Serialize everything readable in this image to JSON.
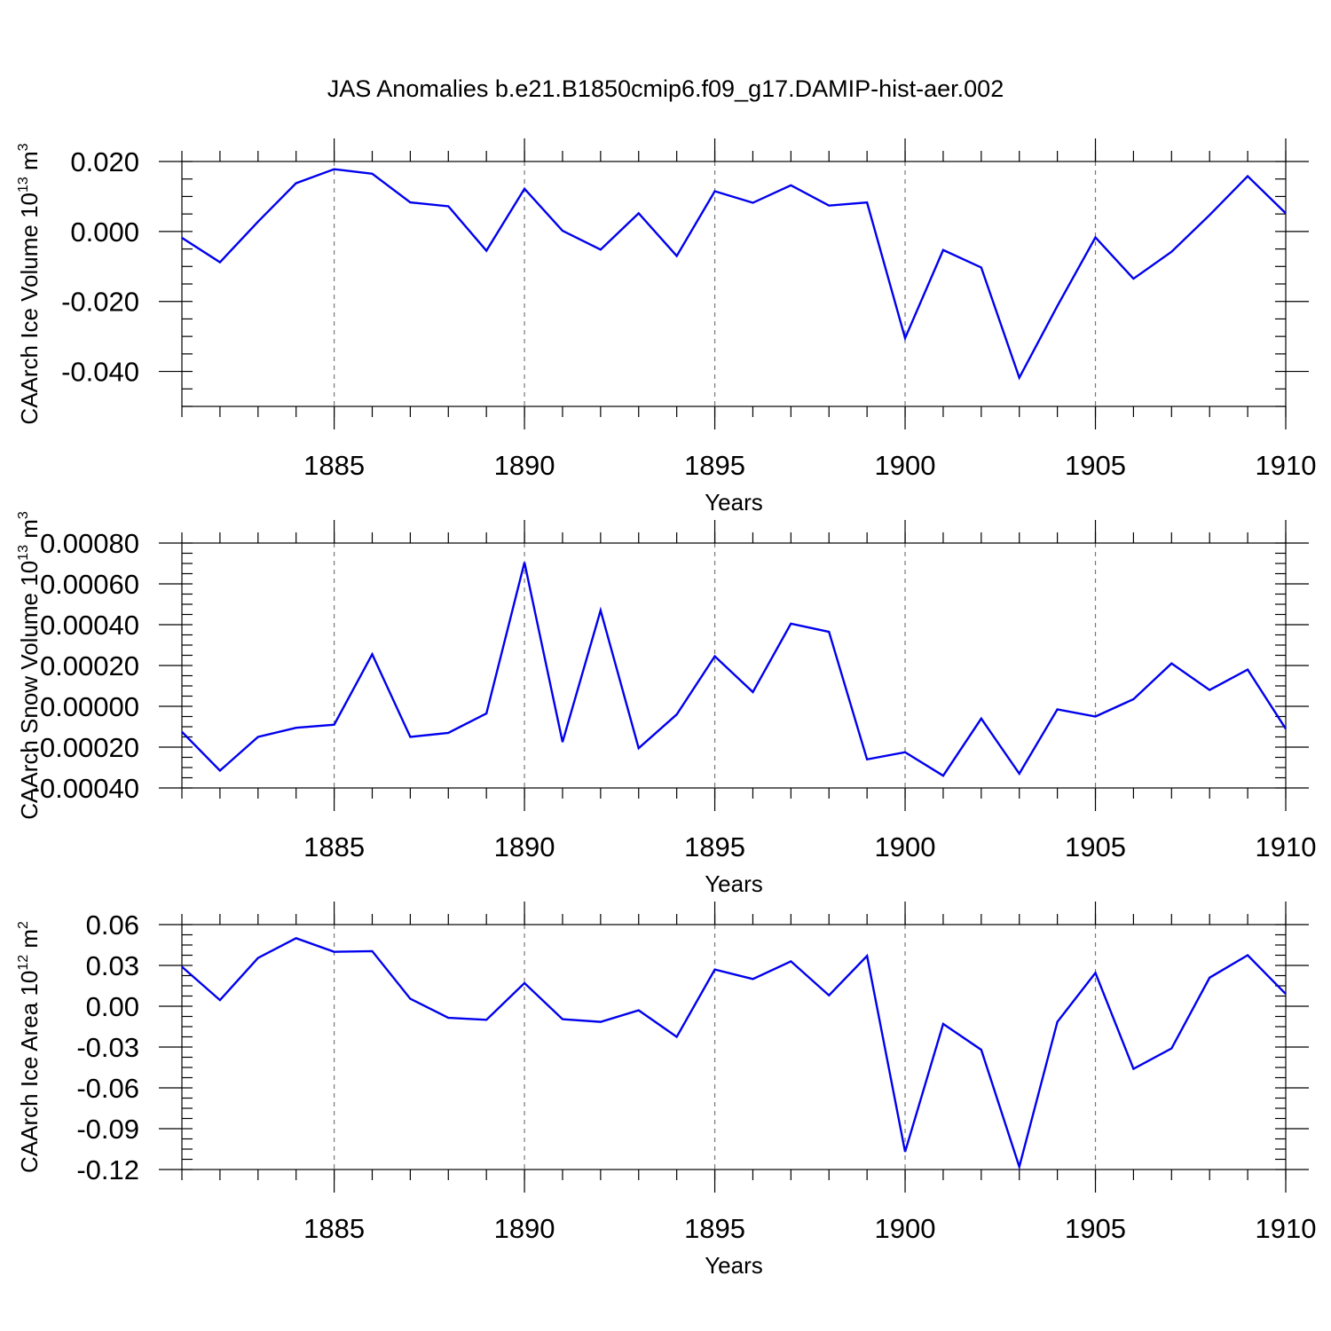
{
  "chart_data": {
    "type": "line",
    "title": "JAS Anomalies b.e21.B1850cmip6.f09_g17.DAMIP-hist-aer.002",
    "x": [
      1881,
      1882,
      1883,
      1884,
      1885,
      1886,
      1887,
      1888,
      1889,
      1890,
      1891,
      1892,
      1893,
      1894,
      1895,
      1896,
      1897,
      1898,
      1899,
      1900,
      1901,
      1902,
      1903,
      1904,
      1905,
      1906,
      1907,
      1908,
      1909,
      1910
    ],
    "xlim": [
      1881,
      1910
    ],
    "xticks": [
      1885,
      1890,
      1895,
      1900,
      1905,
      1910
    ],
    "xtick_labels": [
      "1885",
      "1890",
      "1895",
      "1900",
      "1905",
      "1910"
    ],
    "color": "#0000ee",
    "panels": [
      {
        "xlabel": "Years",
        "ylabel": "CAArch Ice Volume 10",
        "ylabel_exp": "13",
        "ylabel_unit": " m",
        "ylabel_unit_exp": "3",
        "ylim": [
          -0.05,
          0.02
        ],
        "yticks": [
          0.02,
          0.0,
          -0.02,
          -0.04
        ],
        "ytick_labels": [
          "0.020",
          "0.000",
          "-0.020",
          "-0.040"
        ],
        "values": [
          -0.0018,
          -0.0088,
          0.0028,
          0.0138,
          0.0178,
          0.0165,
          0.0083,
          0.0072,
          -0.0055,
          0.0122,
          0.0002,
          -0.0052,
          0.0052,
          -0.007,
          0.0115,
          0.0082,
          0.0132,
          0.0074,
          0.0083,
          -0.0305,
          -0.0053,
          -0.0103,
          -0.0418,
          -0.0213,
          -0.0017,
          -0.0135,
          -0.0058,
          0.0047,
          0.0158,
          0.0052
        ]
      },
      {
        "xlabel": "Years",
        "ylabel": "CAArch Snow Volume 10",
        "ylabel_exp": "13",
        "ylabel_unit": " m",
        "ylabel_unit_exp": "3",
        "ylim": [
          -0.0004,
          0.0008
        ],
        "yticks": [
          0.0008,
          0.0006,
          0.0004,
          0.0002,
          0.0,
          -0.0002,
          -0.0004
        ],
        "ytick_labels": [
          "0.00080",
          "0.00060",
          "0.00040",
          "0.00020",
          "0.00000",
          "-0.00020",
          "-0.00040"
        ],
        "values": [
          -0.000125,
          -0.000315,
          -0.00015,
          -0.000105,
          -9e-05,
          0.000255,
          -0.00015,
          -0.00013,
          -3.5e-05,
          0.000705,
          -0.000175,
          0.00047,
          -0.000205,
          -4e-05,
          0.000245,
          7e-05,
          0.000405,
          0.000365,
          -0.00026,
          -0.000225,
          -0.00034,
          -6e-05,
          -0.00033,
          -1.5e-05,
          -5e-05,
          3.5e-05,
          0.00021,
          8e-05,
          0.00018,
          -0.00011
        ]
      },
      {
        "xlabel": "Years",
        "ylabel": "CAArch Ice Area 10",
        "ylabel_exp": "12",
        "ylabel_unit": " m",
        "ylabel_unit_exp": "2",
        "ylim": [
          -0.12,
          0.06
        ],
        "yticks": [
          0.06,
          0.03,
          0.0,
          -0.03,
          -0.06,
          -0.09,
          -0.12
        ],
        "ytick_labels": [
          "0.06",
          "0.03",
          "0.00",
          "-0.03",
          "-0.06",
          "-0.09",
          "-0.12"
        ],
        "values": [
          0.029,
          0.0045,
          0.0355,
          0.05,
          0.04,
          0.0405,
          0.0055,
          -0.0085,
          -0.01,
          0.017,
          -0.0095,
          -0.0115,
          -0.003,
          -0.0225,
          0.027,
          0.02,
          0.033,
          0.008,
          0.037,
          -0.107,
          -0.013,
          -0.032,
          -0.118,
          -0.0115,
          0.0245,
          -0.046,
          -0.031,
          0.021,
          0.0375,
          0.009
        ]
      }
    ]
  }
}
